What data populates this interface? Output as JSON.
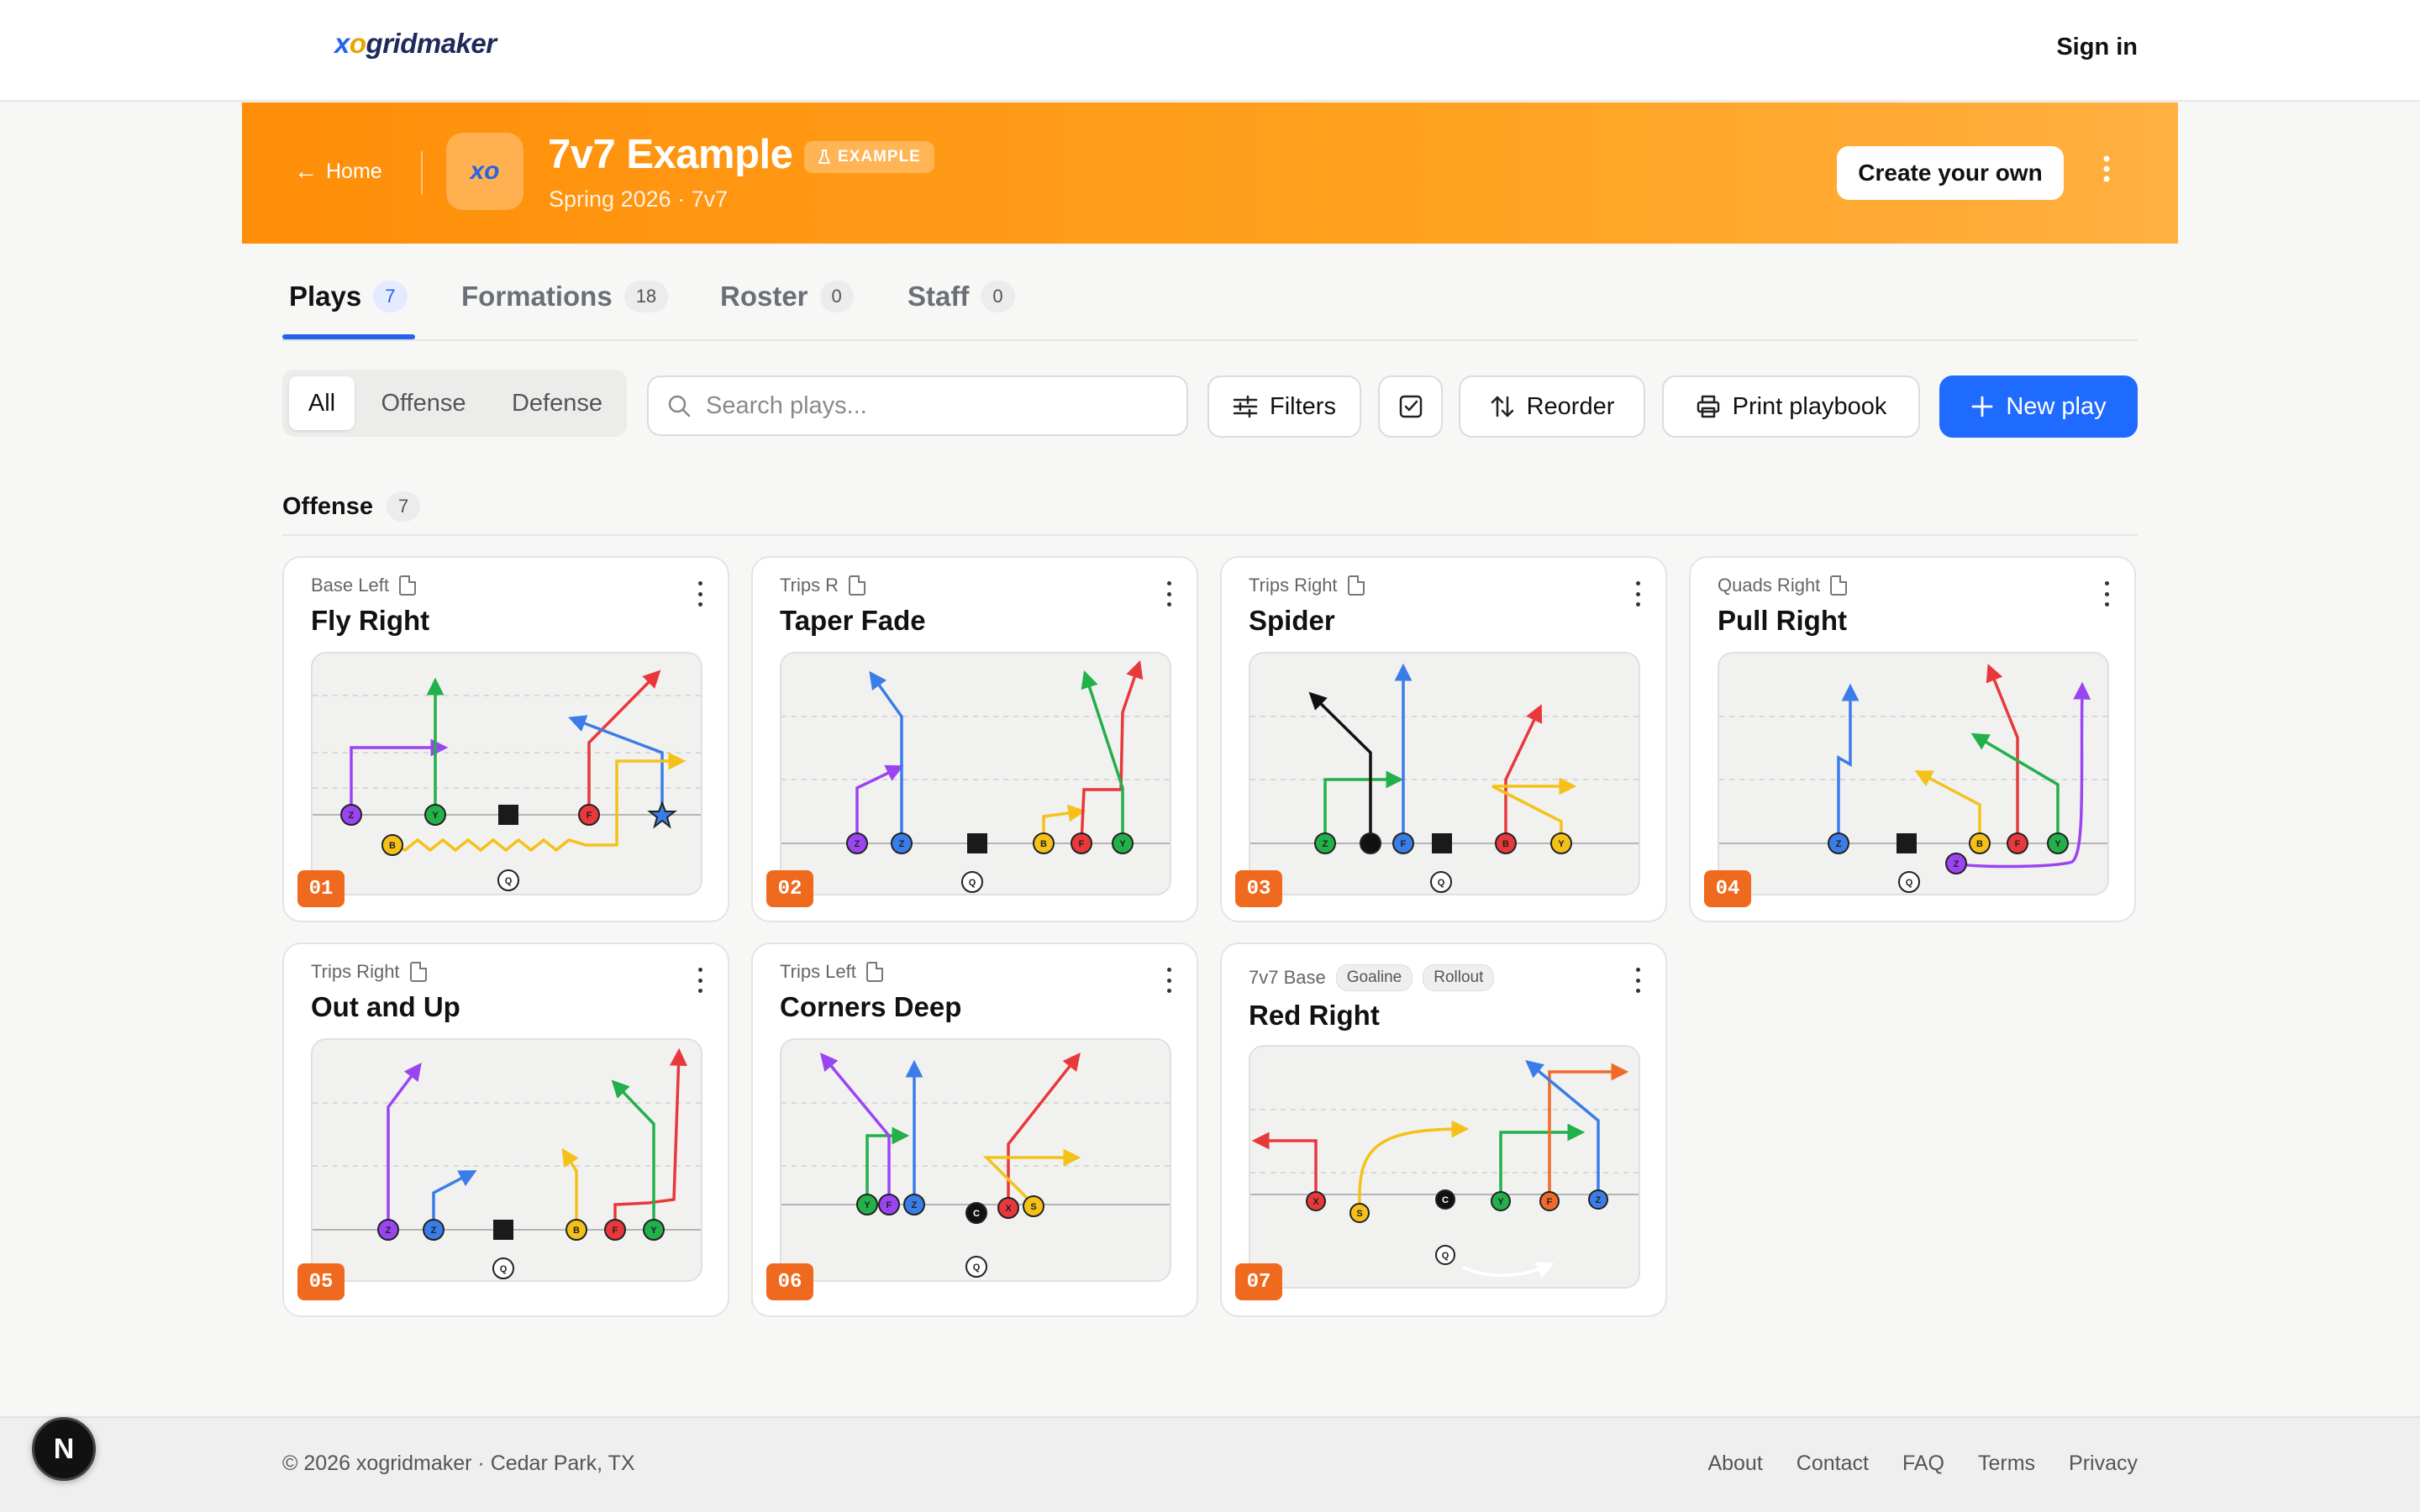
{
  "app": {
    "logo_x": "x",
    "logo_o": "o",
    "logo_rest": "gridmaker",
    "sign_in": "Sign in"
  },
  "team": {
    "home_label": "Home",
    "logo_text": "xo",
    "name": "7v7 Example",
    "badge": "EXAMPLE",
    "subtitle": "Spring 2026 · 7v7",
    "create_label": "Create your own"
  },
  "tabs": [
    {
      "label": "Plays",
      "count": "7"
    },
    {
      "label": "Formations",
      "count": "18"
    },
    {
      "label": "Roster",
      "count": "0"
    },
    {
      "label": "Staff",
      "count": "0"
    }
  ],
  "filter_segments": [
    "All",
    "Offense",
    "Defense"
  ],
  "search": {
    "placeholder": "Search plays..."
  },
  "toolbar": {
    "filters": "Filters",
    "reorder": "Reorder",
    "print": "Print playbook",
    "new_play": "New play"
  },
  "section": {
    "title": "Offense",
    "count": "7"
  },
  "colors": {
    "accent": "#1f6bff",
    "banner": "#ff9612",
    "number_badge": "#ef6a1e"
  },
  "plays": [
    {
      "number": "01",
      "formation": "Base Left",
      "title": "Fly Right",
      "tags": []
    },
    {
      "number": "02",
      "formation": "Trips R",
      "title": "Taper Fade",
      "tags": []
    },
    {
      "number": "03",
      "formation": "Trips Right",
      "title": "Spider",
      "tags": []
    },
    {
      "number": "04",
      "formation": "Quads Right",
      "title": "Pull Right",
      "tags": []
    },
    {
      "number": "05",
      "formation": "Trips Right",
      "title": "Out and Up",
      "tags": []
    },
    {
      "number": "06",
      "formation": "Trips Left",
      "title": "Corners Deep",
      "tags": []
    },
    {
      "number": "07",
      "formation": "7v7 Base",
      "title": "Red Right",
      "tags": [
        "Goaline",
        "Rollout"
      ]
    }
  ],
  "footer": {
    "copyright": "© 2026 xogridmaker · Cedar Park, TX",
    "links": [
      "About",
      "Contact",
      "FAQ",
      "Terms",
      "Privacy"
    ]
  },
  "dev_badge": "N"
}
